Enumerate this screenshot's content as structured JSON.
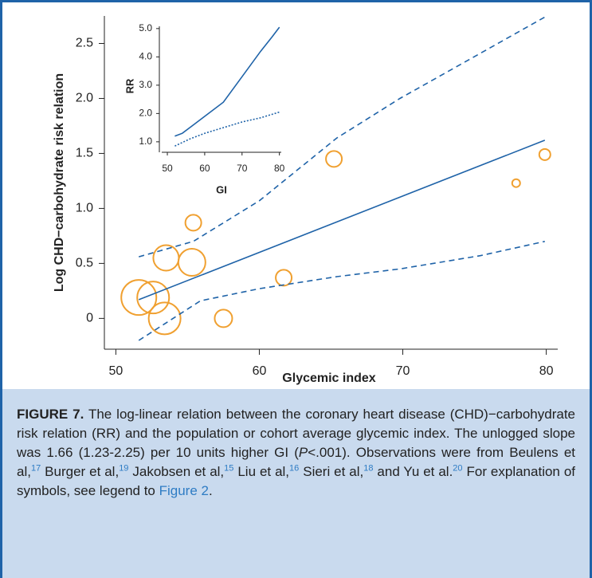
{
  "chart_data": [
    {
      "type": "scatter",
      "y_label": "Log CHD−carbohydrate risk relation",
      "x_label": "Glycemic index",
      "x": [
        51.6,
        52.6,
        53.4,
        53.5,
        55.3,
        55.4,
        57.5,
        61.7,
        65.2,
        77.9,
        79.9
      ],
      "values": [
        0.19,
        0.19,
        0.0,
        0.55,
        0.51,
        0.87,
        0.0,
        0.37,
        1.45,
        1.23,
        1.49
      ],
      "sizes": [
        22,
        20,
        20,
        16,
        17,
        10,
        11,
        10,
        10,
        5,
        7
      ],
      "color": "#f0a030",
      "lines": [
        {
          "style": "solid",
          "color": "#1f63a8",
          "x": [
            51.6,
            79.9
          ],
          "values": [
            0.17,
            1.62
          ]
        },
        {
          "style": "dashed",
          "color": "#1f63a8",
          "x": [
            51.6,
            55.4,
            60,
            65.4,
            69.8,
            75.4,
            79.9
          ],
          "values": [
            0.56,
            0.7,
            1.07,
            1.64,
            2.0,
            2.41,
            2.74
          ]
        },
        {
          "style": "dashed",
          "color": "#1f63a8",
          "x": [
            51.6,
            55.9,
            60,
            65.4,
            69.8,
            75.4,
            79.9
          ],
          "values": [
            -0.2,
            0.16,
            0.27,
            0.38,
            0.45,
            0.57,
            0.7
          ]
        }
      ],
      "xlim": [
        49.2,
        80.8
      ],
      "ylim": [
        -0.28,
        2.75
      ],
      "xticks": [
        50,
        60,
        70,
        80
      ],
      "yticks": [
        0,
        0.5,
        {
          "value": 1.0,
          "label": "1.0"
        },
        1.5,
        {
          "value": 2.0,
          "label": "2.0"
        },
        2.5
      ]
    },
    {
      "type": "line",
      "y_label": "RR",
      "x_label": "GI",
      "series": [
        {
          "style": "solid",
          "color": "#1f63a8",
          "x": [
            52,
            54,
            57,
            61,
            65,
            70,
            75,
            78,
            80
          ],
          "values": [
            1.2,
            1.3,
            1.6,
            2.0,
            2.4,
            3.3,
            4.2,
            4.7,
            5.05
          ]
        },
        {
          "style": "dotted",
          "color": "#1f63a8",
          "x": [
            52,
            56,
            60,
            65,
            70,
            75,
            80
          ],
          "values": [
            0.85,
            1.1,
            1.3,
            1.5,
            1.7,
            1.85,
            2.05
          ]
        }
      ],
      "xlim": [
        48.5,
        80.5
      ],
      "ylim": [
        0.63,
        5.08
      ],
      "xticks": [
        50,
        60,
        70,
        80
      ],
      "yticks": [
        {
          "value": 1.0,
          "label": "1.0"
        },
        {
          "value": 2.0,
          "label": "2.0"
        },
        {
          "value": 3.0,
          "label": "3.0"
        },
        {
          "value": 4.0,
          "label": "4.0"
        },
        {
          "value": 5.0,
          "label": "5.0"
        }
      ]
    }
  ],
  "caption": {
    "label": "FIGURE 7.",
    "parts": [
      {
        "text": " The log-linear relation between the coronary heart disease (CHD)−carbohydrate risk relation (RR) and the population or cohort average glycemic index. The unlogged slope was 1.66 (1.23-2.25) per 10 units higher GI (",
        "style": "plain"
      },
      {
        "text": "P",
        "style": "italic"
      },
      {
        "text": "<.001). Observations were from Beulens et al,",
        "style": "plain"
      },
      {
        "text": "17",
        "style": "sup"
      },
      {
        "text": " Burger et al,",
        "style": "plain"
      },
      {
        "text": "19",
        "style": "sup"
      },
      {
        "text": " Jakobsen et al,",
        "style": "plain"
      },
      {
        "text": "15",
        "style": "sup"
      },
      {
        "text": " Liu et al,",
        "style": "plain"
      },
      {
        "text": "16",
        "style": "sup"
      },
      {
        "text": " Sieri et al,",
        "style": "plain"
      },
      {
        "text": "18",
        "style": "sup"
      },
      {
        "text": " and Yu et al.",
        "style": "plain"
      },
      {
        "text": "20",
        "style": "sup"
      },
      {
        "text": " For explanation of symbols, see legend to ",
        "style": "plain"
      },
      {
        "text": "Figure 2",
        "style": "link"
      },
      {
        "text": ".",
        "style": "plain"
      }
    ]
  }
}
